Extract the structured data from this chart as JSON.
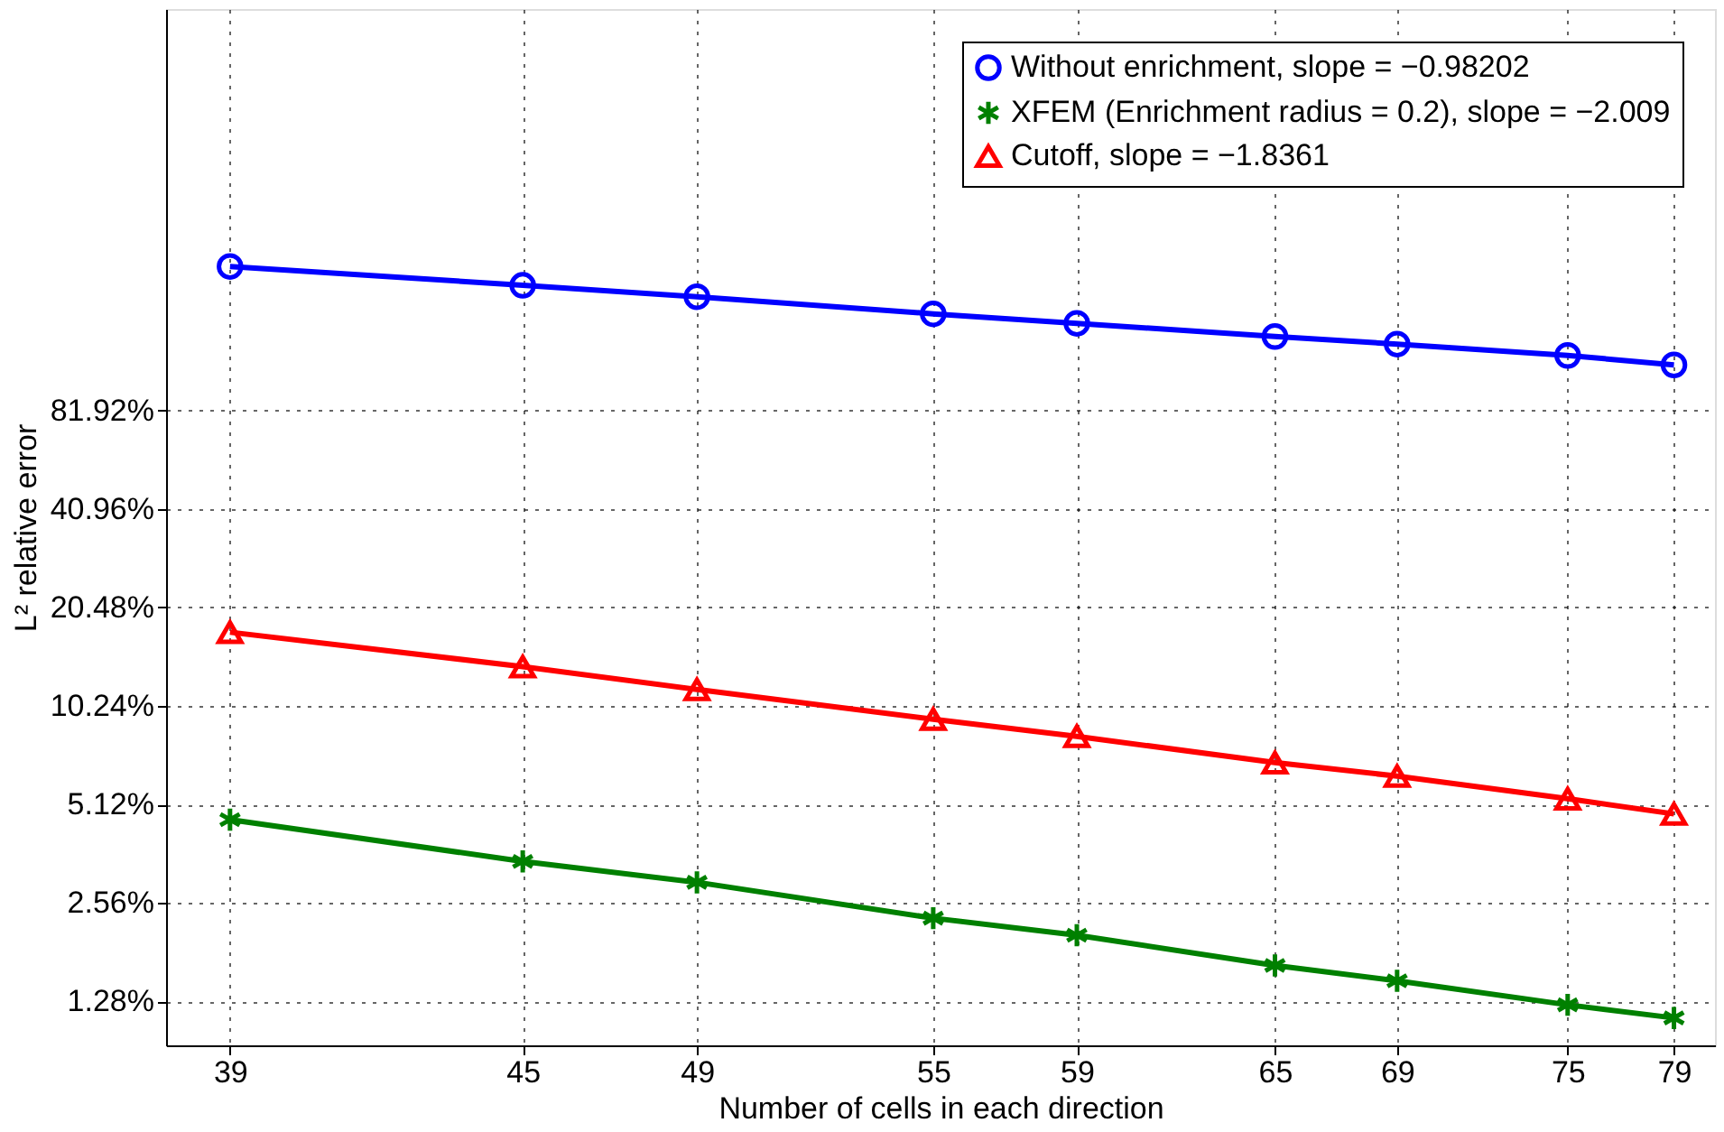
{
  "chart_data": {
    "type": "line",
    "xlabel": "Number of cells in each direction",
    "ylabel": "L² relative error",
    "log": "xy",
    "x": [
      39,
      45,
      49,
      55,
      59,
      65,
      69,
      75,
      79
    ],
    "xlim": [
      37.8,
      80.6
    ],
    "xticks": [
      39,
      45,
      49,
      55,
      59,
      65,
      69,
      75,
      79
    ],
    "ylim": [
      0.94,
      1380
    ],
    "yticks": [
      {
        "value": 1.28,
        "label": "1.28%"
      },
      {
        "value": 2.56,
        "label": "2.56%"
      },
      {
        "value": 5.12,
        "label": "5.12%"
      },
      {
        "value": 10.24,
        "label": "10.24%"
      },
      {
        "value": 20.48,
        "label": "20.48%"
      },
      {
        "value": 40.96,
        "label": "40.96%"
      },
      {
        "value": 81.92,
        "label": "81.92%"
      }
    ],
    "grid": true,
    "legend": "top right",
    "line_style": "solid",
    "series": [
      {
        "name": "Without enrichment, slope = −0.98202",
        "color": "#0000ff",
        "marker": "circle",
        "values": [
          225.6,
          197.5,
          182.3,
          161.6,
          151.2,
          137.8,
          130.6,
          120.6,
          112.8
        ]
      },
      {
        "name": "XFEM (Enrichment radius = 0.2), slope = −2.009",
        "color": "#008000",
        "marker": "cross",
        "values": [
          4.6,
          3.43,
          2.96,
          2.3,
          2.04,
          1.65,
          1.48,
          1.25,
          1.14
        ]
      },
      {
        "name": "Cutoff, slope = −1.8361",
        "color": "#ff0000",
        "marker": "triangle",
        "values": [
          17.2,
          13.5,
          11.5,
          9.33,
          8.27,
          6.87,
          6.25,
          5.33,
          4.79
        ]
      }
    ]
  }
}
